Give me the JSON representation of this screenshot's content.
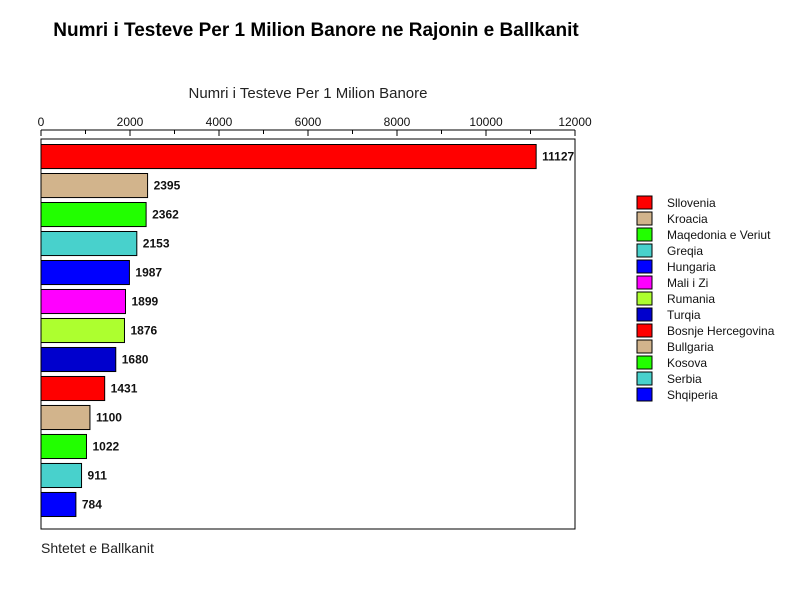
{
  "chart_data": {
    "type": "bar",
    "orientation": "horizontal",
    "title": "Numri i Testeve Per 1 Milion Banore ne Rajonin e Ballkanit",
    "xlabel": "Numri i Testeve Per 1 Milion Banore",
    "ylabel": "Shtetet e Ballkanit",
    "xlim": [
      0,
      12000
    ],
    "x_ticks": [
      0,
      2000,
      4000,
      6000,
      8000,
      10000,
      12000
    ],
    "x_tick_labels": [
      "0",
      "2000",
      "4000",
      "6000",
      "8000",
      "10000",
      "12000"
    ],
    "grid": false,
    "legend_position": "right",
    "categories": [
      "Sllovenia",
      "Kroacia",
      "Maqedonia e Veriut",
      "Greqia",
      "Hungaria",
      "Mali i Zi",
      "Rumania",
      "Turqia",
      "Bosnje Hercegovina",
      "Bullgaria",
      "Kosova",
      "Serbia",
      "Shqiperia"
    ],
    "values": [
      11127,
      2395,
      2362,
      2153,
      1987,
      1899,
      1876,
      1680,
      1431,
      1100,
      1022,
      911,
      784
    ],
    "value_labels": [
      "11127",
      "2395",
      "2362",
      "2153",
      "1987",
      "1899",
      "1876",
      "1680",
      "1431",
      "1100",
      "1022",
      "911",
      "784"
    ],
    "colors": [
      "#ff0000",
      "#d2b48c",
      "#22ff00",
      "#48d1cc",
      "#0000ff",
      "#ff00ff",
      "#adff2f",
      "#0000cd",
      "#ff0000",
      "#d2b48c",
      "#22ff00",
      "#48d1cc",
      "#0000ff"
    ]
  }
}
